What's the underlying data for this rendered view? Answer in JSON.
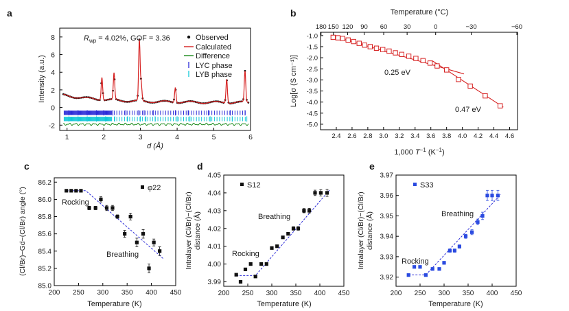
{
  "chart_data": [
    {
      "panel": "a",
      "type": "line",
      "xlabel": "d (Å)",
      "ylabel": "Intensity (a.u.)",
      "xlim": [
        0.8,
        6.0
      ],
      "ylim": [
        -2.6,
        9.0
      ],
      "xticks": [
        1,
        2,
        3,
        4,
        5,
        6
      ],
      "yticks": [
        -2,
        0,
        2,
        4,
        6,
        8
      ],
      "annotation": {
        "rwp_label": "R",
        "rwp_sub": "wp",
        "rwp_value": " = 4.02%, GOF = 3.36"
      },
      "legend": [
        "Observed",
        "Calculated",
        "Difference",
        "LYC phase",
        "LYB phase"
      ],
      "colors": {
        "observed": "#111111",
        "calculated": "#d62020",
        "difference": "#1a8a1a",
        "lyc": "#2a2ad8",
        "lyb": "#10c8d8"
      },
      "peaks": [
        {
          "d": 1.95,
          "h": 2.6
        },
        {
          "d": 2.28,
          "h": 3.0
        },
        {
          "d": 2.97,
          "h": 6.8
        },
        {
          "d": 3.02,
          "h": 2.0
        },
        {
          "d": 3.95,
          "h": 1.7
        },
        {
          "d": 5.35,
          "h": 2.7
        },
        {
          "d": 5.85,
          "h": 3.5
        }
      ],
      "lyc_ticks": [
        1.05,
        1.3,
        1.55,
        1.8,
        2.0,
        2.25,
        2.6,
        2.95,
        3.1,
        3.35,
        3.95,
        4.3,
        4.85,
        5.45,
        5.85
      ],
      "lyb_ticks": [
        1.05,
        1.3,
        1.55,
        1.8,
        2.05,
        2.3,
        2.65,
        3.0,
        3.15,
        3.4,
        4.0,
        4.35,
        4.9,
        5.5,
        5.9
      ]
    },
    {
      "panel": "b",
      "type": "scatter",
      "xlabel_prefix": "1,000 ",
      "xlabel_T": "T",
      "xlabel_exp": "−1",
      "xlabel_suffix": " (K",
      "xlabel_exp2": "−1",
      "xlabel_close": ")",
      "ylabel": "Log[σ (S cm⁻¹)]",
      "top_label": "Temperature (°C)",
      "xlim": [
        2.2,
        4.7
      ],
      "ylim": [
        -5.25,
        -0.85
      ],
      "xticks": [
        "2.4",
        "2.6",
        "2.8",
        "3.0",
        "3.2",
        "3.4",
        "3.6",
        "3.8",
        "4.0",
        "4.2",
        "4.4",
        "4.6"
      ],
      "xtick_values": [
        2.4,
        2.6,
        2.8,
        3.0,
        3.2,
        3.4,
        3.6,
        3.8,
        4.0,
        4.2,
        4.4,
        4.6
      ],
      "yticks": [
        "-1.0",
        "-1.5",
        "-2.0",
        "-2.5",
        "-3.0",
        "-3.5",
        "-4.0",
        "-4.5",
        "-5.0"
      ],
      "ytick_values": [
        -1.0,
        -1.5,
        -2.0,
        -2.5,
        -3.0,
        -3.5,
        -4.0,
        -4.5,
        -5.0
      ],
      "top_ticks": [
        "180",
        "150",
        "120",
        "90",
        "60",
        "30",
        "0",
        "−30",
        "−60"
      ],
      "top_tick_celsius": [
        180,
        150,
        120,
        90,
        60,
        30,
        0,
        -30,
        -60
      ],
      "x": [
        2.36,
        2.42,
        2.48,
        2.55,
        2.62,
        2.69,
        2.76,
        2.83,
        2.91,
        2.99,
        3.07,
        3.15,
        3.23,
        3.32,
        3.41,
        3.5,
        3.59,
        3.68,
        3.8,
        3.95,
        4.1,
        4.29,
        4.48
      ],
      "y": [
        -1.08,
        -1.1,
        -1.13,
        -1.2,
        -1.27,
        -1.35,
        -1.43,
        -1.5,
        -1.57,
        -1.63,
        -1.7,
        -1.78,
        -1.85,
        -1.93,
        -2.03,
        -2.13,
        -2.24,
        -2.37,
        -2.55,
        -2.98,
        -3.28,
        -3.72,
        -4.17
      ],
      "fit1": {
        "x": [
          2.33,
          4.02
        ],
        "y": [
          -1.0,
          -2.73
        ],
        "label": "0.25 eV"
      },
      "fit2": {
        "x": [
          3.62,
          4.52
        ],
        "y": [
          -2.14,
          -4.23
        ],
        "label": "0.47 eV"
      },
      "color": "#d62020"
    },
    {
      "panel": "c",
      "type": "scatter",
      "xlabel": "Temperature (K)",
      "ylabel": "(Cl/Br)−Gd−(Cl/Br) angle (°)",
      "xlim": [
        200,
        450
      ],
      "ylim": [
        85.0,
        86.25
      ],
      "xticks": [
        200,
        250,
        300,
        350,
        400,
        450
      ],
      "yticks": [
        "85.0",
        "85.2",
        "85.4",
        "85.6",
        "85.8",
        "86.0",
        "86.2"
      ],
      "ytick_values": [
        85.0,
        85.2,
        85.4,
        85.6,
        85.8,
        86.0,
        86.2
      ],
      "legend_label": "φ22",
      "rocking_label": "Rocking",
      "breathing_label": "Breathing",
      "x": [
        225,
        235,
        245,
        255,
        272,
        285,
        296,
        308,
        320,
        330,
        345,
        357,
        370,
        383,
        395,
        405,
        417
      ],
      "y": [
        86.1,
        86.1,
        86.1,
        86.1,
        85.9,
        85.9,
        86.0,
        85.9,
        85.9,
        85.8,
        85.6,
        85.8,
        85.5,
        85.6,
        85.2,
        85.5,
        85.4
      ],
      "err": [
        0.01,
        0.01,
        0.01,
        0.01,
        0.02,
        0.02,
        0.03,
        0.03,
        0.03,
        0.02,
        0.04,
        0.04,
        0.05,
        0.05,
        0.05,
        0.04,
        0.05
      ],
      "trend": {
        "x": [
          225,
          265,
          425
        ],
        "y": [
          86.1,
          86.1,
          85.31
        ]
      },
      "color": "#111111"
    },
    {
      "panel": "d",
      "type": "scatter",
      "xlabel": "Temperature (K)",
      "ylabel_line1": "Intralayer (Cl/Br)−(Cl/Br)",
      "ylabel_line2": "distance (Å)",
      "xlim": [
        200,
        450
      ],
      "ylim": [
        3.9875,
        4.05
      ],
      "xticks": [
        200,
        250,
        300,
        350,
        400,
        450
      ],
      "yticks": [
        "3.99",
        "4.00",
        "4.01",
        "4.02",
        "4.03",
        "4.04",
        "4.05"
      ],
      "ytick_values": [
        3.99,
        4.0,
        4.01,
        4.02,
        4.03,
        4.04,
        4.05
      ],
      "legend_label": "S12",
      "rocking_label": "Rocking",
      "breathing_label": "Breathing",
      "x": [
        226,
        235,
        245,
        256,
        266,
        278,
        289,
        300,
        311,
        323,
        334,
        345,
        355,
        367,
        378,
        390,
        402,
        415
      ],
      "y": [
        3.994,
        3.99,
        3.997,
        4.0,
        3.993,
        4.0,
        4.0,
        4.009,
        4.01,
        4.015,
        4.017,
        4.02,
        4.02,
        4.03,
        4.03,
        4.04,
        4.04,
        4.04
      ],
      "err": [
        0.0005,
        0.0005,
        0.0005,
        0.0005,
        0.0005,
        0.0005,
        0.0005,
        0.0006,
        0.0006,
        0.0007,
        0.0008,
        0.001,
        0.001,
        0.0012,
        0.0013,
        0.0015,
        0.0018,
        0.002
      ],
      "trend": {
        "x": [
          226,
          266,
          420
        ],
        "y": [
          3.9935,
          3.9935,
          4.0415
        ]
      },
      "color": "#111111"
    },
    {
      "panel": "e",
      "type": "scatter",
      "xlabel": "Temperature (K)",
      "ylabel_line1": "Intralayer (Cl/Br)−(Cl/Br)",
      "ylabel_line2": "distance (Å)",
      "xlim": [
        200,
        450
      ],
      "ylim": [
        3.9155,
        3.97
      ],
      "xticks": [
        200,
        250,
        300,
        350,
        400,
        450
      ],
      "yticks": [
        "3.92",
        "3.93",
        "3.94",
        "3.95",
        "3.96",
        "3.97"
      ],
      "ytick_values": [
        3.92,
        3.93,
        3.94,
        3.95,
        3.96,
        3.97
      ],
      "legend_label": "S33",
      "rocking_label": "Rocking",
      "breathing_label": "Breathing",
      "x": [
        226,
        238,
        250,
        262,
        276,
        290,
        300,
        312,
        322,
        332,
        345,
        358,
        370,
        380,
        390,
        400,
        412
      ],
      "y": [
        3.921,
        3.925,
        3.925,
        3.921,
        3.924,
        3.924,
        3.927,
        3.933,
        3.933,
        3.935,
        3.94,
        3.942,
        3.947,
        3.95,
        3.96,
        3.96,
        3.96
      ],
      "err": [
        0.0005,
        0.0006,
        0.0006,
        0.0005,
        0.0006,
        0.0006,
        0.0007,
        0.0008,
        0.0008,
        0.0008,
        0.001,
        0.0012,
        0.0014,
        0.0018,
        0.0025,
        0.0025,
        0.0025
      ],
      "trend": {
        "x": [
          226,
          262,
          418
        ],
        "y": [
          3.9211,
          3.9211,
          3.9605
        ]
      },
      "color": "#2a4ae0"
    }
  ]
}
